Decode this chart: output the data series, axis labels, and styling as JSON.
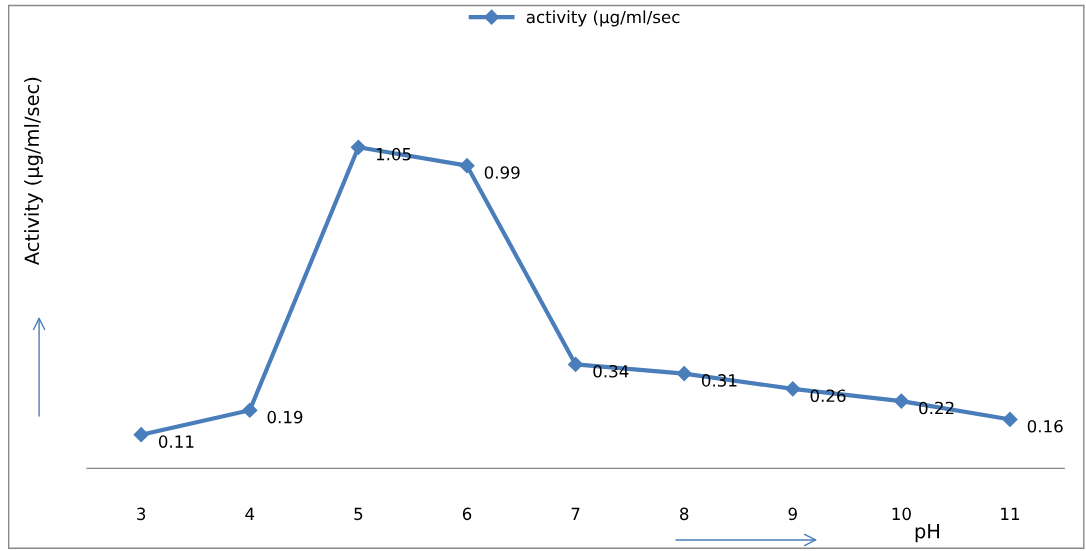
{
  "chart_data": {
    "type": "line",
    "xlabel": "pH",
    "ylabel": "Activity (µg/ml/sec)",
    "categories": [
      "3",
      "4",
      "5",
      "6",
      "7",
      "8",
      "9",
      "10",
      "11"
    ],
    "series": [
      {
        "name": "activity (µg/ml/sec",
        "color": "#4a7ebb",
        "values": [
          0.11,
          0.19,
          1.05,
          0.99,
          0.34,
          0.31,
          0.26,
          0.22,
          0.16
        ]
      }
    ],
    "data_labels": true,
    "marker": "diamond",
    "line_style": "solid",
    "legend": "top",
    "grid": false,
    "tick_labels": "x"
  }
}
